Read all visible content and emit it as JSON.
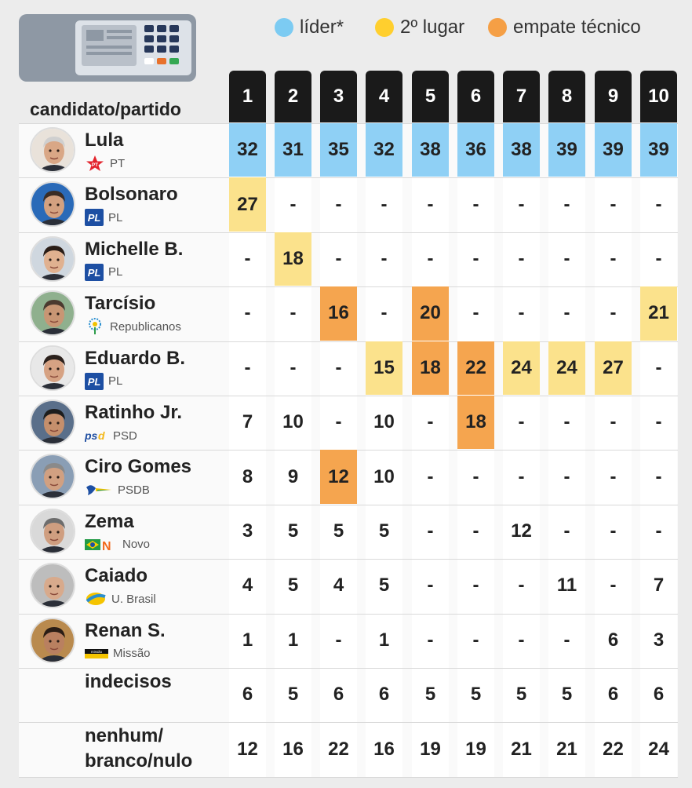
{
  "legend": [
    {
      "label": "líder*",
      "color": "#7ccbf2"
    },
    {
      "label": "2º lugar",
      "color": "#ffcf2e"
    },
    {
      "label": "empate técnico",
      "color": "#f59f45"
    }
  ],
  "header_label": "candidato/partido",
  "colors": {
    "leader": "#8fd0f5",
    "second": "#fbe28c",
    "tie": "#f5a54f",
    "header_bg": "#1a1a1a"
  },
  "chart_data": {
    "type": "table",
    "columns": [
      "1",
      "2",
      "3",
      "4",
      "5",
      "6",
      "7",
      "8",
      "9",
      "10"
    ],
    "rows": [
      {
        "name": "Lula",
        "party": "PT",
        "party_icon": "pt-star-icon",
        "values": [
          "32",
          "31",
          "35",
          "32",
          "38",
          "36",
          "38",
          "39",
          "39",
          "39"
        ],
        "highlight": [
          "leader",
          "leader",
          "leader",
          "leader",
          "leader",
          "leader",
          "leader",
          "leader",
          "leader",
          "leader"
        ]
      },
      {
        "name": "Bolsonaro",
        "party": "PL",
        "party_icon": "pl-logo-icon",
        "values": [
          "27",
          "-",
          "-",
          "-",
          "-",
          "-",
          "-",
          "-",
          "-",
          "-"
        ],
        "highlight": [
          "second",
          "",
          "",
          "",
          "",
          "",
          "",
          "",
          "",
          ""
        ]
      },
      {
        "name": "Michelle B.",
        "party": "PL",
        "party_icon": "pl-logo-icon",
        "values": [
          "-",
          "18",
          "-",
          "-",
          "-",
          "-",
          "-",
          "-",
          "-",
          "-"
        ],
        "highlight": [
          "",
          "second",
          "",
          "",
          "",
          "",
          "",
          "",
          "",
          ""
        ]
      },
      {
        "name": "Tarcísio",
        "party": "Republicanos",
        "party_icon": "republicanos-tree-icon",
        "values": [
          "-",
          "-",
          "16",
          "-",
          "20",
          "-",
          "-",
          "-",
          "-",
          "21"
        ],
        "highlight": [
          "",
          "",
          "tie",
          "",
          "tie",
          "",
          "",
          "",
          "",
          "second"
        ]
      },
      {
        "name": "Eduardo B.",
        "party": "PL",
        "party_icon": "pl-logo-icon",
        "values": [
          "-",
          "-",
          "-",
          "15",
          "18",
          "22",
          "24",
          "24",
          "27",
          "-"
        ],
        "highlight": [
          "",
          "",
          "",
          "second",
          "tie",
          "tie",
          "second",
          "second",
          "second",
          ""
        ]
      },
      {
        "name": "Ratinho Jr.",
        "party": "PSD",
        "party_icon": "psd-logo-icon",
        "values": [
          "7",
          "10",
          "-",
          "10",
          "-",
          "18",
          "-",
          "-",
          "-",
          "-"
        ],
        "highlight": [
          "",
          "",
          "",
          "",
          "",
          "tie",
          "",
          "",
          "",
          ""
        ]
      },
      {
        "name": "Ciro Gomes",
        "party": "PSDB",
        "party_icon": "psdb-toucan-icon",
        "values": [
          "8",
          "9",
          "12",
          "10",
          "-",
          "-",
          "-",
          "-",
          "-",
          "-"
        ],
        "highlight": [
          "",
          "",
          "tie",
          "",
          "",
          "",
          "",
          "",
          "",
          ""
        ]
      },
      {
        "name": "Zema",
        "party": "Novo",
        "party_icon": "novo-logo-icon",
        "values": [
          "3",
          "5",
          "5",
          "5",
          "-",
          "-",
          "12",
          "-",
          "-",
          "-"
        ],
        "highlight": [
          "",
          "",
          "",
          "",
          "",
          "",
          "",
          "",
          "",
          ""
        ]
      },
      {
        "name": "Caiado",
        "party": "U. Brasil",
        "party_icon": "uniao-brasil-logo-icon",
        "values": [
          "4",
          "5",
          "4",
          "5",
          "-",
          "-",
          "-",
          "11",
          "-",
          "7"
        ],
        "highlight": [
          "",
          "",
          "",
          "",
          "",
          "",
          "",
          "",
          "",
          ""
        ]
      },
      {
        "name": "Renan S.",
        "party": "Missão",
        "party_icon": "missao-logo-icon",
        "values": [
          "1",
          "1",
          "-",
          "1",
          "-",
          "-",
          "-",
          "-",
          "6",
          "3"
        ],
        "highlight": [
          "",
          "",
          "",
          "",
          "",
          "",
          "",
          "",
          "",
          ""
        ]
      },
      {
        "name": "indecisos",
        "party": "",
        "party_icon": "",
        "values": [
          "6",
          "5",
          "6",
          "6",
          "5",
          "5",
          "5",
          "5",
          "6",
          "6"
        ],
        "highlight": [
          "",
          "",
          "",
          "",
          "",
          "",
          "",
          "",
          "",
          ""
        ]
      },
      {
        "name_lines": [
          "nenhum/",
          "branco/nulo"
        ],
        "party": "",
        "party_icon": "",
        "values": [
          "12",
          "16",
          "22",
          "16",
          "19",
          "19",
          "21",
          "21",
          "22",
          "24"
        ],
        "highlight": [
          "",
          "",
          "",
          "",
          "",
          "",
          "",
          "",
          "",
          ""
        ]
      }
    ]
  }
}
